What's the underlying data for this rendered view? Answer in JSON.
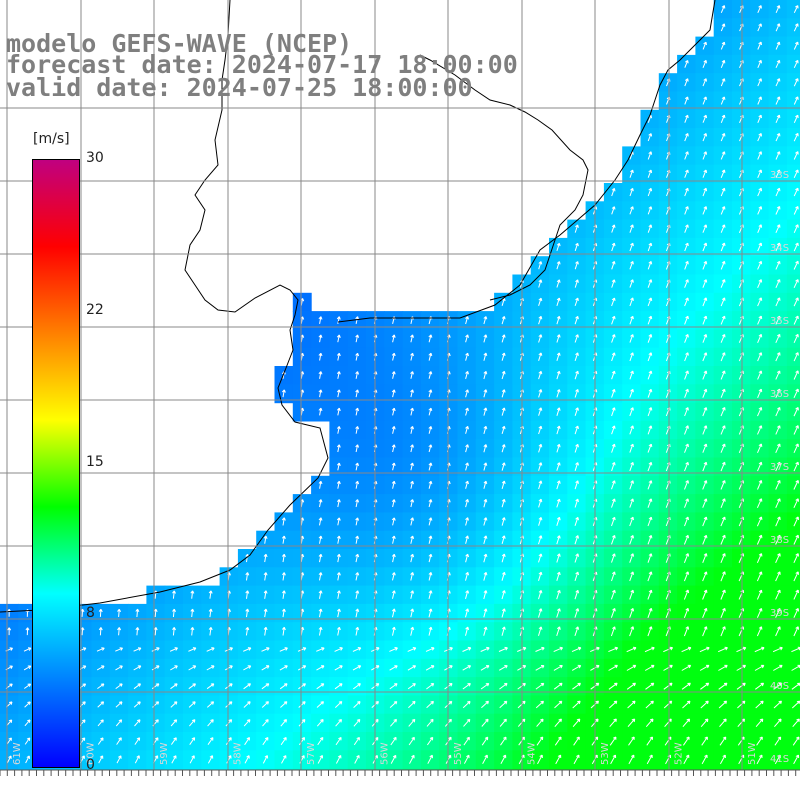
{
  "title": {
    "line1": "modelo GEFS-WAVE (NCEP)",
    "line2": "forecast date: 2024-07-17 18:00:00",
    "line3": "valid date: 2024-07-25 18:00:00"
  },
  "colorbar": {
    "units": "[m/s]",
    "min": 0,
    "max": 30,
    "ticks": [
      "30",
      "22",
      "15",
      "8",
      "0"
    ],
    "tick_values": [
      30,
      22.5,
      15,
      7.5,
      0
    ],
    "stops": [
      "#0000ff",
      "#0080ff",
      "#00ffff",
      "#00ff00",
      "#ffff00",
      "#ff8000",
      "#ff0000",
      "#c00080"
    ]
  },
  "grid": {
    "lat_labels": [
      "33S",
      "34S",
      "35S",
      "36S",
      "37S",
      "38S",
      "39S",
      "40S",
      "41S"
    ],
    "lon_labels": [
      "61W",
      "60W",
      "59W",
      "58W",
      "57W",
      "56W",
      "55W",
      "54W",
      "53W",
      "52W",
      "51W"
    ]
  },
  "colors": {
    "land": "#ffffff",
    "coast": "#000000",
    "grid": "#888888",
    "arrow": "#ffffff",
    "title_text": "#7f7f7f"
  }
}
